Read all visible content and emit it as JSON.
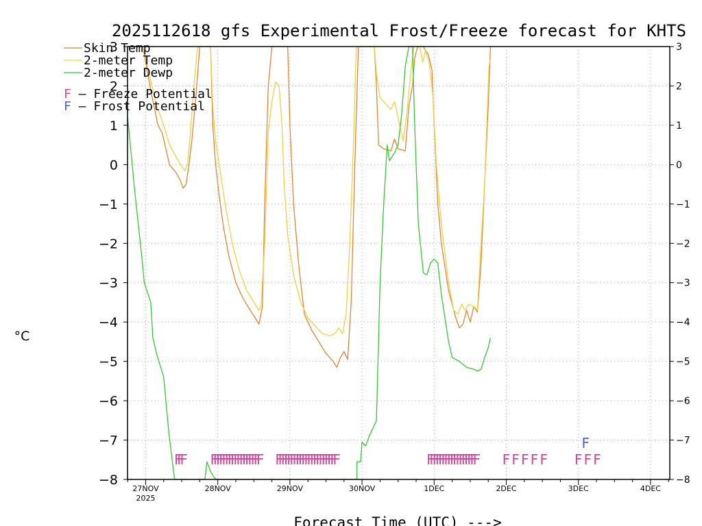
{
  "chart_data": {
    "type": "line",
    "title": "2025112618 gfs Experimental Frost/Freeze forecast for KHTS",
    "xlabel": "Forecast Time (UTC) --->",
    "ylabel": "°C",
    "ylim": [
      -8,
      3
    ],
    "xlim": [
      -0.25,
      7.25
    ],
    "grid": true,
    "y_ticks": [
      -8,
      -7,
      -6,
      -5,
      -4,
      -3,
      -2,
      -1,
      0,
      1,
      2,
      3
    ],
    "y_tick_labels": [
      "−8",
      "−7",
      "−6",
      "−5",
      "−4",
      "−3",
      "−2",
      "−1",
      "0",
      "1",
      "2",
      "3"
    ],
    "x_ticks": [
      0,
      1,
      2,
      3,
      4,
      5,
      6,
      7
    ],
    "x_tick_labels": [
      "27NOV",
      "28NOV",
      "29NOV",
      "30NOV",
      "1DEC",
      "2DEC",
      "3DEC",
      "4DEC"
    ],
    "x_sublabel": "2025",
    "series": [
      {
        "name": "Skin Temp",
        "color": "#e8822e",
        "points": [
          [
            -0.25,
            3
          ],
          [
            -0.04,
            3
          ],
          [
            0.08,
            1.8
          ],
          [
            0.17,
            1.0
          ],
          [
            0.23,
            0.8
          ],
          [
            0.33,
            0.0
          ],
          [
            0.42,
            -0.2
          ],
          [
            0.48,
            -0.4
          ],
          [
            0.52,
            -0.6
          ],
          [
            0.56,
            -0.5
          ],
          [
            0.6,
            0.0
          ],
          [
            0.64,
            0.6
          ],
          [
            0.7,
            1.8
          ],
          [
            0.75,
            3
          ],
          [
            0.9,
            3
          ],
          [
            0.93,
            1.0
          ],
          [
            0.97,
            0.0
          ],
          [
            1.02,
            -0.8
          ],
          [
            1.08,
            -1.6
          ],
          [
            1.15,
            -2.3
          ],
          [
            1.25,
            -3.0
          ],
          [
            1.35,
            -3.4
          ],
          [
            1.45,
            -3.7
          ],
          [
            1.52,
            -3.9
          ],
          [
            1.57,
            -4.05
          ],
          [
            1.62,
            -3.6
          ],
          [
            1.65,
            -1.0
          ],
          [
            1.7,
            2.0
          ],
          [
            1.75,
            3
          ],
          [
            1.97,
            3
          ],
          [
            2.0,
            1.0
          ],
          [
            2.05,
            -1.0
          ],
          [
            2.12,
            -2.5
          ],
          [
            2.2,
            -3.8
          ],
          [
            2.3,
            -4.2
          ],
          [
            2.4,
            -4.5
          ],
          [
            2.5,
            -4.8
          ],
          [
            2.6,
            -5.0
          ],
          [
            2.65,
            -5.15
          ],
          [
            2.7,
            -4.9
          ],
          [
            2.75,
            -4.75
          ],
          [
            2.8,
            -4.95
          ],
          [
            2.85,
            -3.5
          ],
          [
            2.9,
            0.0
          ],
          [
            2.95,
            3
          ],
          [
            3.17,
            3
          ],
          [
            3.2,
            2.0
          ],
          [
            3.23,
            0.5
          ],
          [
            3.3,
            0.4
          ],
          [
            3.4,
            0.35
          ],
          [
            3.45,
            0.65
          ],
          [
            3.5,
            0.4
          ],
          [
            3.6,
            0.35
          ],
          [
            3.65,
            1.5
          ],
          [
            3.7,
            2.0
          ],
          [
            3.73,
            2.7
          ],
          [
            3.77,
            3
          ],
          [
            3.85,
            3
          ],
          [
            3.88,
            2.9
          ],
          [
            3.92,
            2.8
          ],
          [
            3.97,
            2.4
          ],
          [
            4.0,
            1.0
          ],
          [
            4.05,
            -1.0
          ],
          [
            4.1,
            -2.0
          ],
          [
            4.2,
            -3.2
          ],
          [
            4.3,
            -3.9
          ],
          [
            4.35,
            -4.15
          ],
          [
            4.4,
            -4.05
          ],
          [
            4.45,
            -3.7
          ],
          [
            4.5,
            -4.0
          ],
          [
            4.55,
            -3.6
          ],
          [
            4.6,
            -3.75
          ],
          [
            4.65,
            -2.5
          ],
          [
            4.7,
            -0.5
          ],
          [
            4.75,
            1.5
          ],
          [
            4.78,
            3
          ]
        ]
      },
      {
        "name": "2-meter Temp",
        "color": "#f2d03a",
        "points": [
          [
            -0.25,
            3
          ],
          [
            -0.04,
            3
          ],
          [
            0.05,
            2.3
          ],
          [
            0.15,
            1.5
          ],
          [
            0.25,
            1.0
          ],
          [
            0.33,
            0.5
          ],
          [
            0.42,
            0.2
          ],
          [
            0.5,
            -0.05
          ],
          [
            0.54,
            -0.15
          ],
          [
            0.58,
            0.0
          ],
          [
            0.62,
            0.8
          ],
          [
            0.66,
            1.8
          ],
          [
            0.72,
            3
          ],
          [
            0.9,
            3
          ],
          [
            0.93,
            1.5
          ],
          [
            0.97,
            0.6
          ],
          [
            1.05,
            -0.4
          ],
          [
            1.12,
            -1.2
          ],
          [
            1.2,
            -2.0
          ],
          [
            1.3,
            -2.7
          ],
          [
            1.4,
            -3.2
          ],
          [
            1.5,
            -3.5
          ],
          [
            1.57,
            -3.7
          ],
          [
            1.6,
            -3.6
          ],
          [
            1.65,
            -2.0
          ],
          [
            1.7,
            0.8
          ],
          [
            1.75,
            1.6
          ],
          [
            1.8,
            2.1
          ],
          [
            1.85,
            2.0
          ],
          [
            1.89,
            1.0
          ],
          [
            1.92,
            -0.5
          ],
          [
            1.97,
            -1.8
          ],
          [
            2.05,
            -2.8
          ],
          [
            2.15,
            -3.5
          ],
          [
            2.25,
            -3.9
          ],
          [
            2.35,
            -4.1
          ],
          [
            2.45,
            -4.3
          ],
          [
            2.55,
            -4.35
          ],
          [
            2.62,
            -4.3
          ],
          [
            2.68,
            -4.15
          ],
          [
            2.73,
            -4.3
          ],
          [
            2.78,
            -3.8
          ],
          [
            2.83,
            -2.0
          ],
          [
            2.88,
            0.5
          ],
          [
            2.92,
            3
          ],
          [
            3.17,
            3
          ],
          [
            3.2,
            2.3
          ],
          [
            3.25,
            1.7
          ],
          [
            3.3,
            1.6
          ],
          [
            3.4,
            1.4
          ],
          [
            3.45,
            1.6
          ],
          [
            3.5,
            1.2
          ],
          [
            3.57,
            0.6
          ],
          [
            3.62,
            1.3
          ],
          [
            3.68,
            2.4
          ],
          [
            3.72,
            3
          ],
          [
            3.75,
            3
          ],
          [
            3.8,
            3
          ],
          [
            3.84,
            2.6
          ],
          [
            3.88,
            2.9
          ],
          [
            3.93,
            2.6
          ],
          [
            3.98,
            1.8
          ],
          [
            4.03,
            0.0
          ],
          [
            4.1,
            -1.5
          ],
          [
            4.2,
            -3.0
          ],
          [
            4.27,
            -3.7
          ],
          [
            4.33,
            -3.8
          ],
          [
            4.38,
            -3.55
          ],
          [
            4.43,
            -3.7
          ],
          [
            4.48,
            -3.55
          ],
          [
            4.55,
            -3.6
          ],
          [
            4.6,
            -3.7
          ],
          [
            4.65,
            -2.0
          ],
          [
            4.7,
            -0.5
          ],
          [
            4.73,
            1.0
          ],
          [
            4.76,
            2.5
          ],
          [
            4.78,
            2.7
          ]
        ]
      },
      {
        "name": "2-meter Dewp",
        "color": "#2ecc2e",
        "points": [
          [
            -0.25,
            1.2
          ],
          [
            -0.15,
            -0.7
          ],
          [
            -0.05,
            -2.4
          ],
          [
            -0.02,
            -3.0
          ],
          [
            0.07,
            -3.5
          ],
          [
            0.1,
            -4.4
          ],
          [
            0.15,
            -4.8
          ],
          [
            0.2,
            -5.1
          ],
          [
            0.25,
            -5.4
          ],
          [
            0.32,
            -6.8
          ],
          [
            0.4,
            -8
          ],
          [
            0.82,
            -8
          ],
          [
            0.85,
            -7.55
          ],
          [
            0.9,
            -7.8
          ],
          [
            0.95,
            -7.95
          ],
          [
            0.98,
            -8
          ],
          [
            2.93,
            -8
          ],
          [
            2.93,
            -7.55
          ],
          [
            2.98,
            -7.55
          ],
          [
            3.0,
            -7.05
          ],
          [
            3.05,
            -7.15
          ],
          [
            3.1,
            -6.9
          ],
          [
            3.15,
            -6.7
          ],
          [
            3.2,
            -6.5
          ],
          [
            3.25,
            -3.0
          ],
          [
            3.3,
            -1.0
          ],
          [
            3.35,
            0.5
          ],
          [
            3.38,
            0.1
          ],
          [
            3.45,
            0.3
          ],
          [
            3.5,
            0.5
          ],
          [
            3.55,
            1.3
          ],
          [
            3.6,
            2.5
          ],
          [
            3.65,
            3
          ],
          [
            3.7,
            3
          ],
          [
            3.73,
            1.0
          ],
          [
            3.78,
            -1.5
          ],
          [
            3.85,
            -2.75
          ],
          [
            3.9,
            -2.8
          ],
          [
            3.95,
            -2.5
          ],
          [
            4.0,
            -2.4
          ],
          [
            4.05,
            -2.5
          ],
          [
            4.1,
            -3.3
          ],
          [
            4.2,
            -4.5
          ],
          [
            4.25,
            -4.9
          ],
          [
            4.35,
            -5.0
          ],
          [
            4.45,
            -5.15
          ],
          [
            4.55,
            -5.2
          ],
          [
            4.6,
            -5.25
          ],
          [
            4.65,
            -5.2
          ],
          [
            4.7,
            -4.9
          ],
          [
            4.75,
            -4.65
          ],
          [
            4.78,
            -4.4
          ]
        ]
      }
    ],
    "freeze_marks": {
      "label": "F",
      "color": "#d4449a",
      "dense_runs": [
        [
          0.45,
          0.55
        ],
        [
          0.95,
          1.6
        ],
        [
          1.85,
          2.65
        ],
        [
          3.95,
          4.6
        ]
      ],
      "sparse": [
        5.0,
        5.13,
        5.26,
        5.39,
        5.52,
        6.0,
        6.13,
        6.26
      ]
    },
    "frost_marks": {
      "label": "F",
      "color": "#4a5ee6",
      "points": [
        6.1
      ]
    },
    "legend": {
      "position": "top-left",
      "entries": [
        {
          "label": "Skin Temp",
          "color": "#e8822e"
        },
        {
          "label": "2-meter Temp",
          "color": "#f2d03a"
        },
        {
          "label": "2-meter Dewp",
          "color": "#2ecc2e"
        }
      ],
      "flags": [
        {
          "glyph": "F",
          "text": " – Freeze Potential",
          "color": "#d4449a"
        },
        {
          "glyph": "F",
          "text": " – Frost Potential",
          "color": "#4a5ee6"
        }
      ]
    }
  }
}
